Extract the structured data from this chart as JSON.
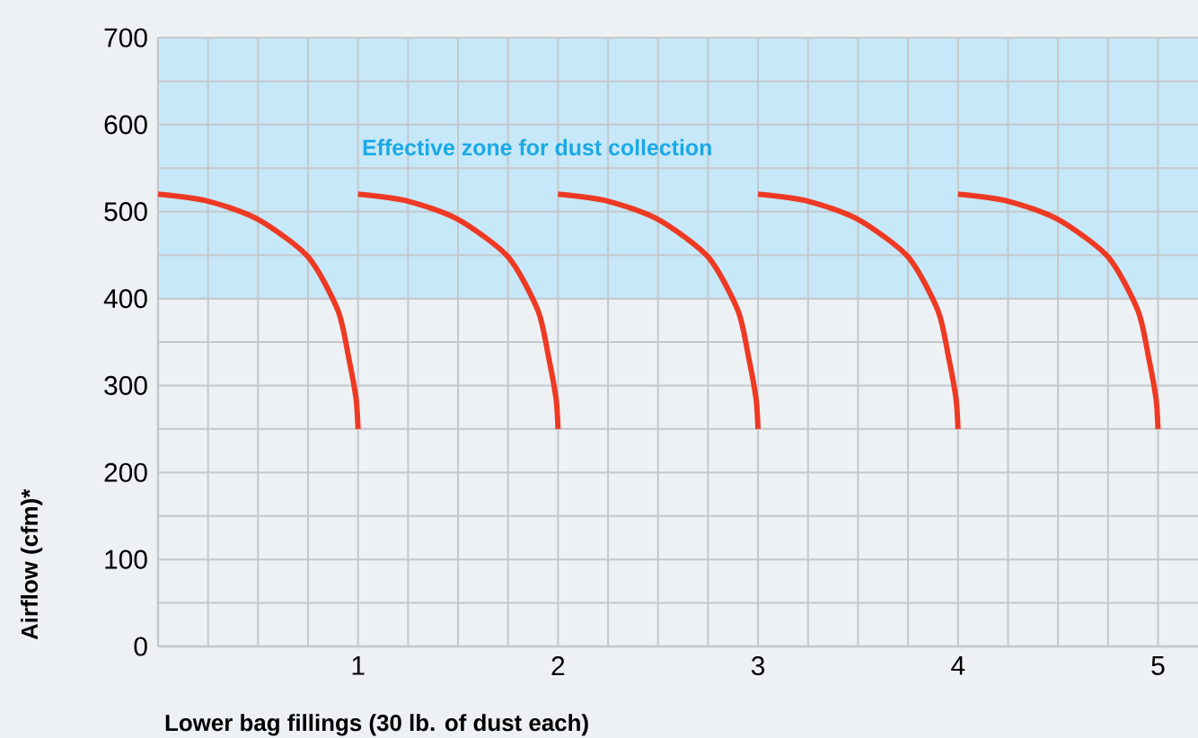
{
  "chart_data": {
    "type": "line",
    "xlabel": "Lower bag fillings (30 lb. of dust each)",
    "ylabel": "Airflow (cfm)*",
    "xlim": [
      0,
      5.2
    ],
    "ylim": [
      0,
      700
    ],
    "xticks": [
      {
        "value": 0,
        "label": null
      },
      {
        "value": 0.25,
        "label": null
      },
      {
        "value": 0.5,
        "label": null
      },
      {
        "value": 0.75,
        "label": null
      },
      1,
      {
        "value": 1.25,
        "label": null
      },
      {
        "value": 1.5,
        "label": null
      },
      {
        "value": 1.75,
        "label": null
      },
      2,
      {
        "value": 2.25,
        "label": null
      },
      {
        "value": 2.5,
        "label": null
      },
      {
        "value": 2.75,
        "label": null
      },
      3,
      {
        "value": 3.25,
        "label": null
      },
      {
        "value": 3.5,
        "label": null
      },
      {
        "value": 3.75,
        "label": null
      },
      4,
      {
        "value": 4.25,
        "label": null
      },
      {
        "value": 4.5,
        "label": null
      },
      {
        "value": 4.75,
        "label": null
      },
      5
    ],
    "yticks": [
      0,
      {
        "value": 50,
        "label": null
      },
      100,
      {
        "value": 150,
        "label": null
      },
      200,
      {
        "value": 250,
        "label": null
      },
      300,
      {
        "value": 350,
        "label": null
      },
      400,
      {
        "value": 450,
        "label": null
      },
      500,
      {
        "value": 550,
        "label": null
      },
      600,
      {
        "value": 650,
        "label": null
      },
      700
    ],
    "grid": true,
    "bands": [
      {
        "axis": "y",
        "from": 400,
        "to": 700,
        "label": "Effective zone for dust collection",
        "color": "#c7e8f8"
      }
    ],
    "series": [
      {
        "color": "#ee3a24",
        "x": [
          0,
          0.25,
          0.5,
          0.75,
          0.9,
          0.955,
          0.99,
          1,
          null,
          1,
          1.25,
          1.5,
          1.75,
          1.9,
          1.955,
          1.99,
          2,
          null,
          2,
          2.25,
          2.5,
          2.75,
          2.9,
          2.955,
          2.99,
          3,
          null,
          3,
          3.25,
          3.5,
          3.75,
          3.9,
          3.955,
          3.99,
          4,
          null,
          4,
          4.25,
          4.5,
          4.75,
          4.9,
          4.955,
          4.99,
          5
        ],
        "values": [
          520,
          512,
          491,
          448,
          386,
          330,
          285,
          250,
          null,
          520,
          512,
          491,
          448,
          386,
          330,
          285,
          250,
          null,
          520,
          512,
          491,
          448,
          386,
          330,
          285,
          250,
          null,
          520,
          512,
          491,
          448,
          386,
          330,
          285,
          250,
          null,
          520,
          512,
          491,
          448,
          386,
          330,
          285,
          250
        ]
      }
    ]
  }
}
